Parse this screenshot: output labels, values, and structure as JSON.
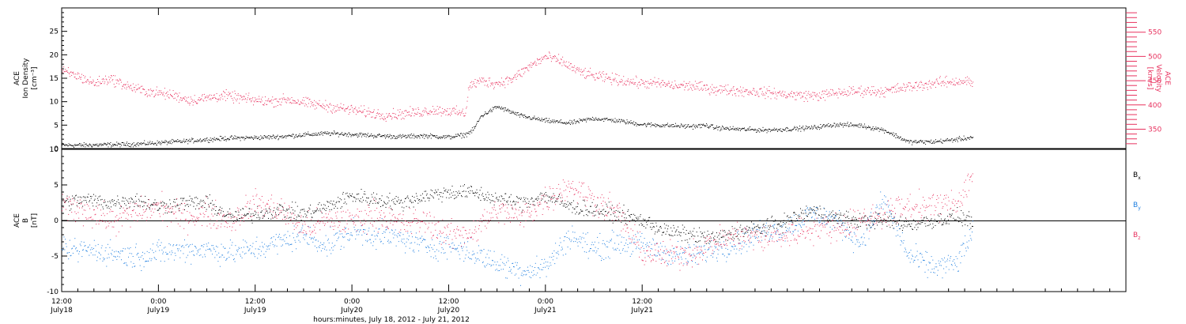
{
  "colors": {
    "density": "#000000",
    "velocity": "#e8325f",
    "bx": "#000000",
    "by": "#1f7fe0",
    "bz": "#e8325f",
    "axis": "#000000"
  },
  "chart_data": [
    {
      "type": "scatter",
      "panel": "top",
      "left_ylabel": [
        "ACE",
        "Ion Density",
        "[cm⁻³]"
      ],
      "right_ylabel": [
        "ACE",
        "Velocity",
        "[km/s]"
      ],
      "left_yticks": [
        "0",
        "5",
        "10",
        "15",
        "20",
        "25"
      ],
      "left_ylim": [
        0,
        30
      ],
      "right_yticks": [
        "350",
        "400",
        "450",
        "500",
        "550"
      ],
      "right_ylim": [
        310,
        600
      ],
      "x_units": "hours since 2012-07-18 12:00",
      "series": [
        {
          "key": "density",
          "axis": "left",
          "x": [
            0,
            3,
            6,
            9,
            12,
            15,
            18,
            21,
            24,
            27,
            30,
            33,
            36,
            39,
            42,
            45,
            48,
            50,
            51,
            52,
            54,
            57,
            60,
            63,
            66,
            69,
            72,
            75,
            78,
            80,
            81,
            84,
            87,
            90,
            93,
            96,
            99,
            102,
            105,
            108,
            111,
            113
          ],
          "y": [
            0.8,
            0.8,
            0.9,
            1.0,
            1.3,
            1.6,
            2.0,
            2.3,
            2.4,
            2.6,
            3.0,
            3.3,
            3.1,
            2.8,
            2.6,
            2.8,
            2.5,
            3.0,
            4.0,
            7.0,
            9.0,
            7.0,
            6.0,
            5.5,
            6.5,
            6.0,
            5.2,
            5.0,
            4.8,
            5.0,
            4.5,
            4.2,
            4.0,
            4.2,
            4.5,
            5.2,
            5.0,
            4.0,
            1.5,
            1.5,
            2.0,
            2.5
          ],
          "noise": 0.4
        },
        {
          "key": "velocity",
          "axis": "right",
          "x": [
            0,
            2,
            4,
            6,
            8,
            10,
            12,
            14,
            16,
            18,
            20,
            22,
            24,
            26,
            28,
            30,
            32,
            34,
            36,
            38,
            40,
            42,
            44,
            46,
            48,
            50,
            50.5,
            52,
            54,
            56,
            58,
            60,
            62,
            64,
            66,
            68,
            70,
            72,
            74,
            76,
            78,
            80,
            82,
            84,
            86,
            88,
            90,
            92,
            94,
            96,
            98,
            100,
            102,
            104,
            106,
            108,
            110,
            112,
            113
          ],
          "y": [
            470,
            460,
            445,
            455,
            440,
            430,
            425,
            420,
            410,
            415,
            420,
            415,
            410,
            408,
            412,
            405,
            400,
            395,
            390,
            385,
            380,
            382,
            385,
            390,
            388,
            382,
            440,
            450,
            445,
            455,
            480,
            500,
            490,
            470,
            460,
            455,
            450,
            445,
            445,
            440,
            440,
            435,
            432,
            430,
            428,
            425,
            422,
            420,
            420,
            425,
            428,
            430,
            428,
            435,
            440,
            445,
            448,
            450,
            445
          ],
          "noise": 9
        }
      ]
    },
    {
      "type": "scatter",
      "panel": "bottom",
      "ylabel": [
        "ACE",
        "B",
        "[nT]"
      ],
      "yticks": [
        "-10",
        "-5",
        "0",
        "5",
        "10"
      ],
      "ylim": [
        -10,
        10
      ],
      "zero_line": true,
      "x_units": "hours since 2012-07-18 12:00",
      "series": [
        {
          "key": "bx",
          "name": "B",
          "sub": "x",
          "x": [
            0,
            3,
            6,
            9,
            12,
            15,
            18,
            21,
            24,
            27,
            30,
            33,
            36,
            39,
            42,
            45,
            48,
            51,
            54,
            57,
            60,
            63,
            66,
            69,
            72,
            75,
            78,
            81,
            84,
            87,
            90,
            93,
            96,
            99,
            102,
            105,
            108,
            111,
            113
          ],
          "y": [
            2.5,
            3.0,
            2.5,
            3.0,
            2.0,
            2.5,
            2.5,
            0.5,
            1.0,
            1.5,
            1.0,
            2.0,
            3.5,
            3.0,
            2.5,
            3.5,
            4.0,
            4.0,
            3.0,
            2.5,
            3.5,
            2.0,
            1.5,
            1.0,
            0.0,
            -1.5,
            -2.0,
            -2.5,
            -1.5,
            -1.0,
            0.0,
            1.5,
            0.5,
            0.0,
            0.0,
            -0.5,
            0.0,
            0.5,
            0.0
          ],
          "noise": 0.9
        },
        {
          "key": "by",
          "name": "B",
          "sub": "y",
          "x": [
            0,
            3,
            6,
            9,
            12,
            15,
            18,
            21,
            24,
            27,
            30,
            33,
            36,
            39,
            42,
            45,
            48,
            51,
            54,
            57,
            60,
            63,
            66,
            69,
            72,
            75,
            78,
            81,
            84,
            87,
            90,
            93,
            96,
            99,
            102,
            105,
            108,
            111,
            113
          ],
          "y": [
            -4.5,
            -4.0,
            -4.5,
            -5.0,
            -4.5,
            -4.0,
            -4.0,
            -4.5,
            -4.0,
            -3.0,
            -2.0,
            -3.5,
            -1.5,
            -2.0,
            -2.5,
            -3.5,
            -3.5,
            -4.5,
            -6.0,
            -7.0,
            -6.5,
            -2.0,
            -4.0,
            -3.0,
            -3.5,
            -4.5,
            -5.0,
            -4.0,
            -3.0,
            -1.5,
            -1.0,
            1.0,
            0.0,
            -3.0,
            3.0,
            -5.0,
            -6.5,
            -6.0,
            -1.5
          ],
          "noise": 1.4
        },
        {
          "key": "bz",
          "name": "B",
          "sub": "z",
          "x": [
            0,
            3,
            6,
            9,
            12,
            15,
            18,
            21,
            24,
            27,
            30,
            33,
            36,
            39,
            42,
            45,
            48,
            51,
            54,
            57,
            60,
            63,
            66,
            69,
            72,
            75,
            78,
            81,
            84,
            87,
            90,
            93,
            96,
            99,
            102,
            105,
            108,
            111,
            113
          ],
          "y": [
            2.0,
            1.5,
            0.0,
            1.0,
            2.0,
            0.5,
            1.0,
            0.0,
            2.5,
            1.5,
            -1.0,
            0.0,
            0.0,
            1.0,
            -0.5,
            0.0,
            -2.0,
            -1.5,
            1.5,
            0.5,
            3.0,
            5.0,
            3.0,
            1.0,
            -4.5,
            -5.0,
            -4.5,
            -3.0,
            -2.0,
            -2.5,
            -2.0,
            -1.0,
            -1.0,
            0.0,
            1.0,
            2.0,
            2.0,
            2.5,
            6.5
          ],
          "noise": 1.6
        }
      ]
    }
  ],
  "x_axis": {
    "range_hours": [
      0,
      132
    ],
    "ticks": [
      {
        "h": 0,
        "time": "12:00",
        "date": "July18"
      },
      {
        "h": 12,
        "time": "0:00",
        "date": "July19"
      },
      {
        "h": 24,
        "time": "12:00",
        "date": "July19"
      },
      {
        "h": 36,
        "time": "0:00",
        "date": "July20"
      },
      {
        "h": 48,
        "time": "12:00",
        "date": "July20"
      },
      {
        "h": 60,
        "time": "0:00",
        "date": "July21"
      },
      {
        "h": 72,
        "time": "12:00",
        "date": "July21"
      }
    ],
    "label": "hours:minutes, July 18, 2012 - July 21, 2012"
  }
}
